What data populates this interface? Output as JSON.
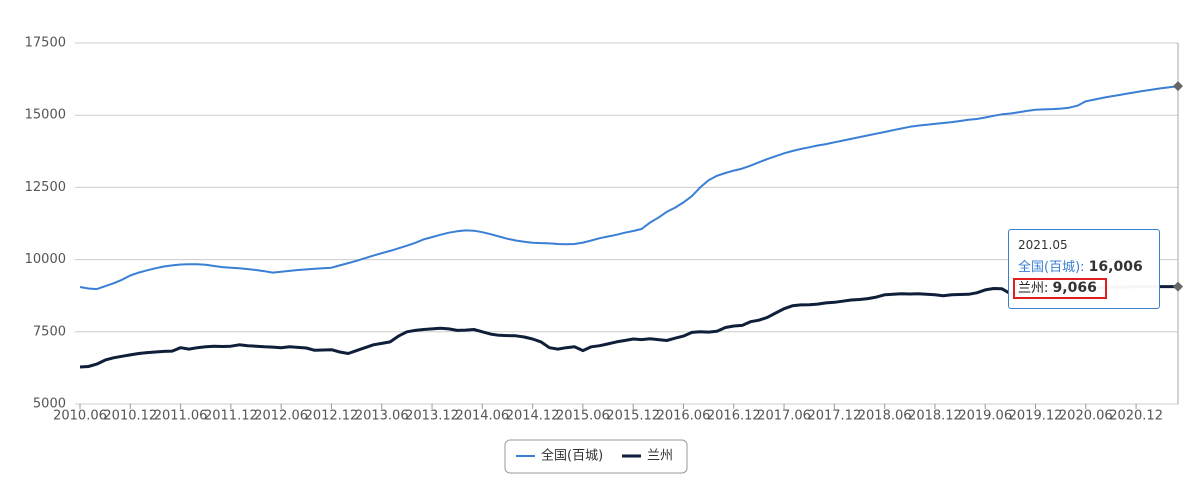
{
  "chart_data": {
    "type": "line",
    "categories": [
      "2010.06",
      null,
      null,
      null,
      null,
      null,
      "2010.12",
      null,
      null,
      null,
      null,
      null,
      "2011.06",
      null,
      null,
      null,
      null,
      null,
      "2011.12",
      null,
      null,
      null,
      null,
      null,
      "2012.06",
      null,
      null,
      null,
      null,
      null,
      "2012.12",
      null,
      null,
      null,
      null,
      null,
      "2013.06",
      null,
      null,
      null,
      null,
      null,
      "2013.12",
      null,
      null,
      null,
      null,
      null,
      "2014.06",
      null,
      null,
      null,
      null,
      null,
      "2014.12",
      null,
      null,
      null,
      null,
      null,
      "2015.06",
      null,
      null,
      null,
      null,
      null,
      "2015.12",
      null,
      null,
      null,
      null,
      null,
      "2016.06",
      null,
      null,
      null,
      null,
      null,
      "2016.12",
      null,
      null,
      null,
      null,
      null,
      "2017.06",
      null,
      null,
      null,
      null,
      null,
      "2017.12",
      null,
      null,
      null,
      null,
      null,
      "2018.06",
      null,
      null,
      null,
      null,
      null,
      "2018.12",
      null,
      null,
      null,
      null,
      null,
      "2019.06",
      null,
      null,
      null,
      null,
      null,
      "2019.12",
      null,
      null,
      null,
      null,
      null,
      "2020.06",
      null,
      null,
      null,
      null,
      null,
      "2020.12",
      null,
      null,
      null,
      null,
      "2021.05"
    ],
    "series": [
      {
        "name": "全国(百城)",
        "color": "#3a7fd5",
        "values": [
          9050,
          9000,
          8980,
          9080,
          9180,
          9300,
          9450,
          9550,
          9630,
          9700,
          9760,
          9800,
          9830,
          9840,
          9840,
          9820,
          9780,
          9740,
          9720,
          9700,
          9670,
          9640,
          9600,
          9550,
          9580,
          9610,
          9640,
          9660,
          9680,
          9700,
          9720,
          9800,
          9880,
          9960,
          10050,
          10140,
          10220,
          10300,
          10390,
          10480,
          10580,
          10700,
          10780,
          10860,
          10930,
          10980,
          11010,
          11000,
          10950,
          10880,
          10800,
          10720,
          10660,
          10620,
          10580,
          10570,
          10560,
          10540,
          10530,
          10540,
          10590,
          10660,
          10740,
          10800,
          10860,
          10930,
          10990,
          11060,
          11280,
          11450,
          11650,
          11800,
          11980,
          12200,
          12500,
          12750,
          12900,
          13000,
          13080,
          13150,
          13250,
          13370,
          13480,
          13580,
          13680,
          13760,
          13830,
          13890,
          13950,
          14000,
          14060,
          14120,
          14180,
          14240,
          14300,
          14360,
          14420,
          14480,
          14540,
          14600,
          14640,
          14670,
          14700,
          14730,
          14760,
          14800,
          14840,
          14870,
          14920,
          14980,
          15030,
          15060,
          15100,
          15150,
          15190,
          15200,
          15210,
          15230,
          15260,
          15330,
          15480,
          15540,
          15600,
          15650,
          15700,
          15750,
          15800,
          15850,
          15890,
          15930,
          15970,
          16006
        ],
        "value_labels": {
          "131": "16,006"
        }
      },
      {
        "name": "兰州",
        "color": "#0f1f3a",
        "values": [
          6280,
          6300,
          6380,
          6520,
          6600,
          6650,
          6700,
          6750,
          6780,
          6800,
          6820,
          6830,
          6950,
          6900,
          6950,
          6980,
          7000,
          6990,
          7000,
          7050,
          7020,
          7000,
          6980,
          6970,
          6950,
          6980,
          6960,
          6940,
          6860,
          6870,
          6880,
          6800,
          6750,
          6850,
          6950,
          7050,
          7100,
          7150,
          7350,
          7500,
          7550,
          7580,
          7600,
          7620,
          7600,
          7550,
          7560,
          7580,
          7500,
          7420,
          7380,
          7370,
          7360,
          7320,
          7250,
          7150,
          6950,
          6900,
          6950,
          6980,
          6850,
          6980,
          7020,
          7080,
          7150,
          7200,
          7250,
          7230,
          7260,
          7230,
          7200,
          7280,
          7350,
          7480,
          7500,
          7490,
          7520,
          7650,
          7700,
          7720,
          7850,
          7900,
          8000,
          8150,
          8300,
          8400,
          8430,
          8440,
          8460,
          8500,
          8520,
          8560,
          8600,
          8620,
          8650,
          8700,
          8780,
          8800,
          8820,
          8810,
          8820,
          8800,
          8780,
          8750,
          8780,
          8790,
          8800,
          8850,
          8950,
          9000,
          8990,
          8820,
          8850,
          8880,
          8900,
          8920,
          8950,
          8970,
          9000,
          9010,
          9020,
          9030,
          9040,
          9045,
          9050,
          9055,
          9060,
          9060,
          9062,
          9064,
          9065,
          9066
        ],
        "value_labels": {
          "131": "9,066"
        }
      }
    ],
    "ylim": [
      5000,
      17500
    ],
    "yticks": [
      5000,
      7500,
      10000,
      12500,
      15000,
      17500
    ],
    "grid": true,
    "tooltip_index": 131
  }
}
